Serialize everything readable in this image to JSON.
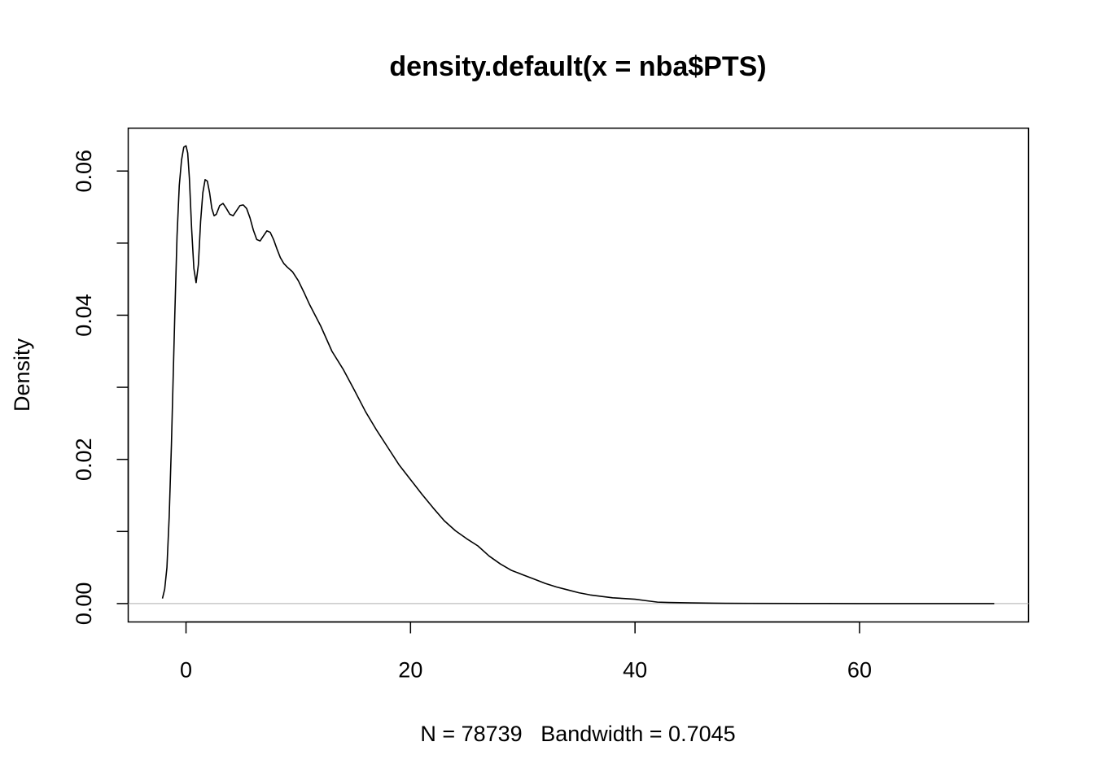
{
  "chart_data": {
    "type": "line",
    "title": "density.default(x = nba$PTS)",
    "xlabel": "N = 78739   Bandwidth = 0.7045",
    "ylabel": "Density",
    "xlim": [
      -5.15,
      75.05
    ],
    "ylim": [
      -0.00255,
      0.06595
    ],
    "x_ticks": [
      0,
      20,
      40,
      60
    ],
    "x_tick_labels": [
      "0",
      "20",
      "40",
      "60"
    ],
    "y_ticks": [
      0.0,
      0.01,
      0.02,
      0.03,
      0.04,
      0.05,
      0.06
    ],
    "y_tick_labels": [
      "0.00",
      "",
      "0.02",
      "",
      "0.04",
      "",
      "0.06"
    ],
    "grid": false,
    "baseline": 0,
    "series": [
      {
        "x": [
          -2.1,
          -1.9,
          -1.7,
          -1.5,
          -1.3,
          -1.2,
          -1.0,
          -0.8,
          -0.6,
          -0.4,
          -0.2,
          0.0,
          0.15,
          0.3,
          0.5,
          0.7,
          0.9,
          1.1,
          1.3,
          1.5,
          1.7,
          1.9,
          2.1,
          2.3,
          2.5,
          2.7,
          3.0,
          3.3,
          3.6,
          3.9,
          4.2,
          4.5,
          4.8,
          5.1,
          5.4,
          5.7,
          6.0,
          6.3,
          6.6,
          6.9,
          7.2,
          7.5,
          7.8,
          8.1,
          8.4,
          8.7,
          9.0,
          9.5,
          10.0,
          10.5,
          11.0,
          12.0,
          13.0,
          14.0,
          15.0,
          16.0,
          17.0,
          18.0,
          19.0,
          20.0,
          21.0,
          22.0,
          23.0,
          24.0,
          25.0,
          26.0,
          27.0,
          28.0,
          29.0,
          30.0,
          31.0,
          32.0,
          33.0,
          34.0,
          35.0,
          36.0,
          37.0,
          38.0,
          39.0,
          40.0,
          41.0,
          42.0,
          43.0,
          45.0,
          47.0,
          50.0,
          55.0,
          60.0,
          65.0,
          72.0
        ],
        "y": [
          0.0007,
          0.002,
          0.005,
          0.012,
          0.022,
          0.028,
          0.04,
          0.051,
          0.058,
          0.0615,
          0.0633,
          0.0635,
          0.0625,
          0.059,
          0.052,
          0.0465,
          0.0445,
          0.047,
          0.053,
          0.057,
          0.0588,
          0.0586,
          0.057,
          0.0548,
          0.0538,
          0.054,
          0.0552,
          0.0555,
          0.0548,
          0.054,
          0.0538,
          0.0545,
          0.0552,
          0.0553,
          0.0548,
          0.0535,
          0.0518,
          0.0505,
          0.0503,
          0.051,
          0.0517,
          0.0515,
          0.0505,
          0.0492,
          0.048,
          0.0472,
          0.0467,
          0.046,
          0.0448,
          0.0432,
          0.0415,
          0.0385,
          0.035,
          0.0325,
          0.0296,
          0.0266,
          0.024,
          0.0216,
          0.0192,
          0.0172,
          0.0152,
          0.0133,
          0.0115,
          0.0101,
          0.009,
          0.008,
          0.0066,
          0.0055,
          0.0046,
          0.004,
          0.0034,
          0.0028,
          0.0023,
          0.0019,
          0.0015,
          0.0012,
          0.001,
          0.0008,
          0.0007,
          0.0006,
          0.0004,
          0.0002,
          0.00015,
          0.0001,
          5e-05,
          3e-05,
          1e-05,
          0.0,
          0.0,
          0.0
        ]
      }
    ]
  }
}
